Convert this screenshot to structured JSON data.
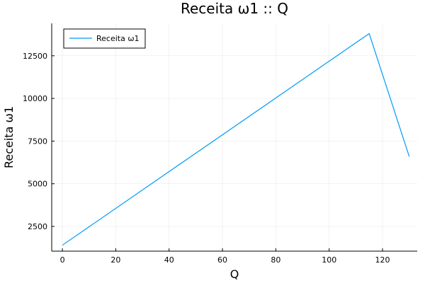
{
  "chart_data": {
    "type": "line",
    "title": "Receita ω1 :: Q",
    "xlabel": "Q",
    "ylabel": "Receita ω1",
    "xlim": [
      -4,
      133
    ],
    "ylim": [
      1050,
      14400
    ],
    "xticks": [
      0,
      20,
      40,
      60,
      80,
      100,
      120
    ],
    "yticks": [
      2500,
      5000,
      7500,
      10000,
      12500
    ],
    "grid": true,
    "legend_position": "top-left",
    "series": [
      {
        "name": "Receita ω1",
        "color": "#009af9",
        "x": [
          0,
          115,
          130
        ],
        "y": [
          1400,
          13800,
          6600
        ]
      }
    ]
  }
}
